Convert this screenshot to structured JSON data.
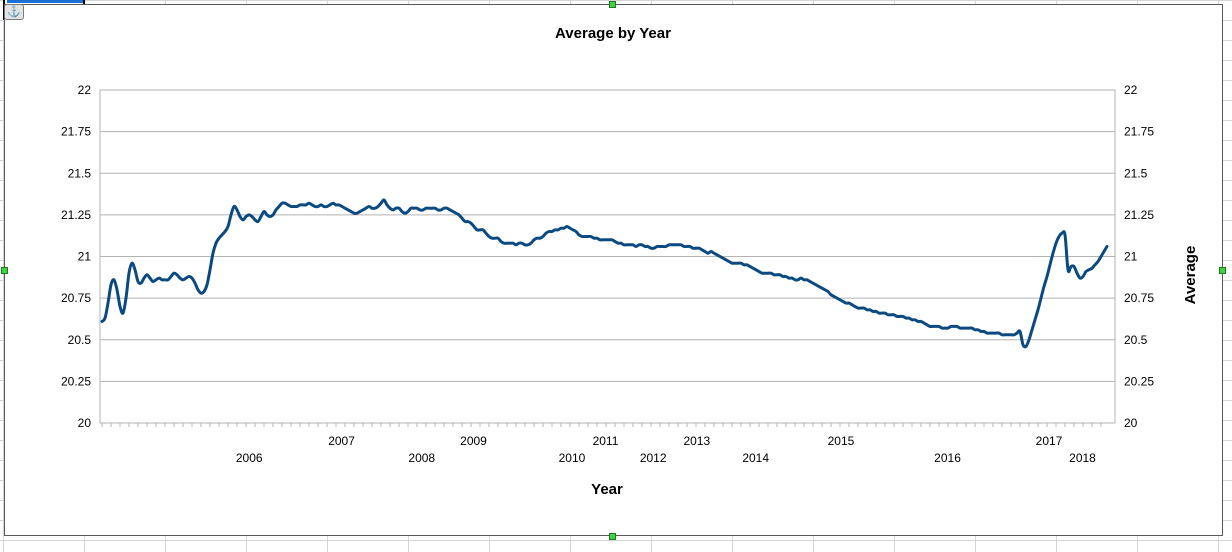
{
  "chart_data": {
    "type": "line",
    "title": "Average by Year",
    "xlabel": "Year",
    "ylabel": "Average",
    "ylim": [
      20,
      22
    ],
    "yticks": [
      "20",
      "20.25",
      "20.5",
      "20.75",
      "21",
      "21.25",
      "21.5",
      "21.75",
      "22"
    ],
    "xticks_row1": [
      "2007",
      "2009",
      "2011",
      "2013",
      "2015",
      "2017"
    ],
    "xticks_row2": [
      "2006",
      "2008",
      "2010",
      "2012",
      "2014",
      "2016",
      "2018"
    ],
    "grid": true,
    "legend": "none",
    "series": [
      {
        "color": "#0b4a80",
        "values": [
          20.61,
          20.63,
          20.72,
          20.83,
          20.86,
          20.8,
          20.7,
          20.66,
          20.75,
          20.9,
          20.96,
          20.92,
          20.85,
          20.84,
          20.87,
          20.89,
          20.87,
          20.85,
          20.86,
          20.87,
          20.86,
          20.86,
          20.86,
          20.88,
          20.9,
          20.89,
          20.87,
          20.86,
          20.87,
          20.88,
          20.87,
          20.84,
          20.8,
          20.78,
          20.79,
          20.83,
          20.92,
          21.02,
          21.08,
          21.11,
          21.13,
          21.15,
          21.18,
          21.25,
          21.3,
          21.28,
          21.24,
          21.22,
          21.24,
          21.25,
          21.24,
          21.22,
          21.21,
          21.24,
          21.27,
          21.25,
          21.24,
          21.25,
          21.28,
          21.3,
          21.32,
          21.32,
          21.31,
          21.3,
          21.3,
          21.3,
          21.31,
          21.31,
          21.31,
          21.32,
          21.31,
          21.3,
          21.3,
          21.31,
          21.3,
          21.3,
          21.31,
          21.32,
          21.31,
          21.31,
          21.3,
          21.29,
          21.28,
          21.27,
          21.26,
          21.26,
          21.27,
          21.28,
          21.29,
          21.3,
          21.29,
          21.29,
          21.3,
          21.32,
          21.34,
          21.31,
          21.29,
          21.28,
          21.29,
          21.29,
          21.27,
          21.26,
          21.27,
          21.29,
          21.29,
          21.29,
          21.28,
          21.28,
          21.29,
          21.29,
          21.29,
          21.29,
          21.28,
          21.28,
          21.29,
          21.29,
          21.28,
          21.27,
          21.26,
          21.25,
          21.23,
          21.21,
          21.21,
          21.2,
          21.18,
          21.16,
          21.16,
          21.16,
          21.14,
          21.12,
          21.11,
          21.11,
          21.11,
          21.09,
          21.08,
          21.08,
          21.08,
          21.08,
          21.07,
          21.08,
          21.08,
          21.07,
          21.07,
          21.08,
          21.1,
          21.11,
          21.11,
          21.12,
          21.14,
          21.15,
          21.15,
          21.16,
          21.16,
          21.17,
          21.17,
          21.18,
          21.17,
          21.16,
          21.15,
          21.13,
          21.12,
          21.12,
          21.12,
          21.12,
          21.11,
          21.11,
          21.1,
          21.1,
          21.1,
          21.1,
          21.1,
          21.09,
          21.08,
          21.08,
          21.07,
          21.07,
          21.07,
          21.07,
          21.06,
          21.07,
          21.07,
          21.06,
          21.06,
          21.05,
          21.05,
          21.06,
          21.06,
          21.06,
          21.06,
          21.07,
          21.07,
          21.07,
          21.07,
          21.07,
          21.06,
          21.06,
          21.06,
          21.05,
          21.05,
          21.05,
          21.04,
          21.03,
          21.02,
          21.03,
          21.02,
          21.01,
          21.0,
          20.99,
          20.98,
          20.97,
          20.96,
          20.96,
          20.96,
          20.96,
          20.95,
          20.95,
          20.94,
          20.93,
          20.92,
          20.91,
          20.9,
          20.9,
          20.9,
          20.9,
          20.89,
          20.89,
          20.89,
          20.88,
          20.88,
          20.87,
          20.87,
          20.86,
          20.86,
          20.87,
          20.86,
          20.86,
          20.85,
          20.84,
          20.83,
          20.82,
          20.81,
          20.8,
          20.79,
          20.77,
          20.76,
          20.75,
          20.74,
          20.73,
          20.72,
          20.72,
          20.71,
          20.7,
          20.69,
          20.69,
          20.69,
          20.68,
          20.68,
          20.67,
          20.67,
          20.66,
          20.66,
          20.66,
          20.65,
          20.65,
          20.65,
          20.64,
          20.64,
          20.64,
          20.63,
          20.63,
          20.62,
          20.62,
          20.61,
          20.61,
          20.6,
          20.59,
          20.58,
          20.58,
          20.58,
          20.58,
          20.57,
          20.57,
          20.57,
          20.58,
          20.58,
          20.58,
          20.57,
          20.57,
          20.57,
          20.57,
          20.57,
          20.56,
          20.56,
          20.55,
          20.55,
          20.54,
          20.54,
          20.54,
          20.54,
          20.54,
          20.53,
          20.53,
          20.53,
          20.53,
          20.53,
          20.54,
          20.55,
          20.47,
          20.46,
          20.5,
          20.56,
          20.62,
          20.68,
          20.75,
          20.82,
          20.88,
          20.95,
          21.02,
          21.08,
          21.12,
          21.14,
          21.13,
          20.92,
          20.94,
          20.94,
          20.9,
          20.87,
          20.88,
          20.91,
          20.92,
          20.93,
          20.95,
          20.97,
          21.0,
          21.03,
          21.06
        ]
      }
    ]
  }
}
